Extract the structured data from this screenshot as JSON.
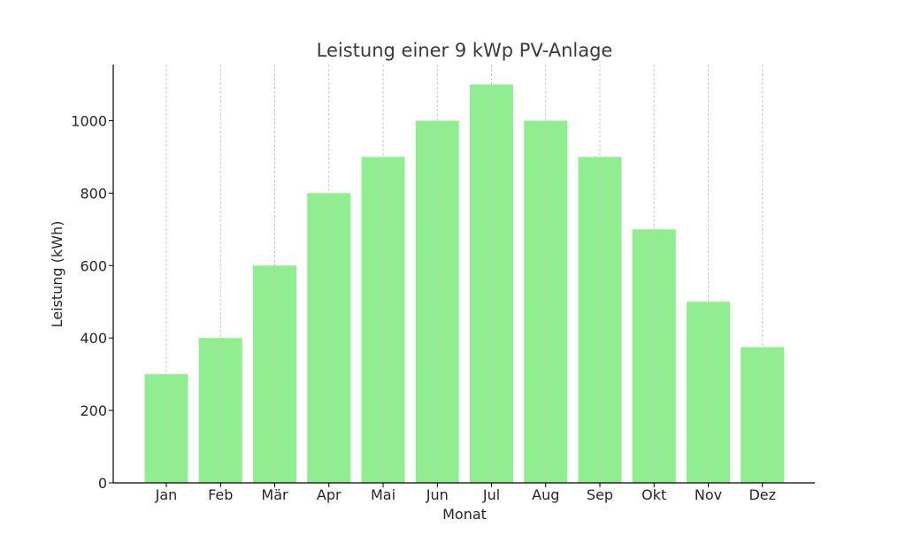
{
  "chart_data": {
    "type": "bar",
    "title": "Leistung einer 9 kWp PV-Anlage",
    "xlabel": "Monat",
    "ylabel": "Leistung (kWh)",
    "categories": [
      "Jan",
      "Feb",
      "Mär",
      "Apr",
      "Mai",
      "Jun",
      "Jul",
      "Aug",
      "Sep",
      "Okt",
      "Nov",
      "Dez"
    ],
    "values": [
      300,
      400,
      600,
      800,
      900,
      1000,
      1100,
      1000,
      900,
      700,
      500,
      375
    ],
    "ylim": [
      0,
      1155
    ],
    "yticks": [
      0,
      200,
      400,
      600,
      800,
      1000
    ],
    "grid": "vertical-dashed",
    "bar_color": "#90ee90",
    "grid_color": "#c8c8c8",
    "axis_color": "#000000"
  }
}
